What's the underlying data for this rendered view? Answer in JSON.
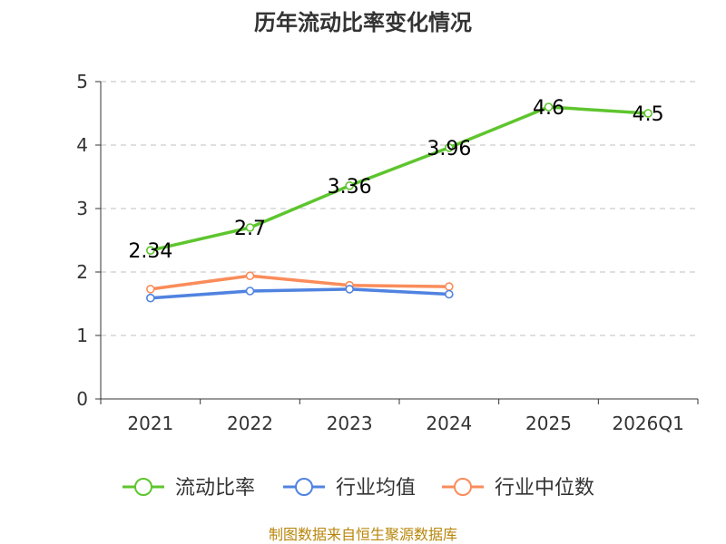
{
  "chart_data": {
    "type": "line",
    "title": "历年流动比率变化情况",
    "categories": [
      "2021",
      "2022",
      "2023",
      "2024",
      "2025",
      "2026Q1"
    ],
    "ylim": [
      0,
      5
    ],
    "yticks": [
      0,
      1,
      2,
      3,
      4,
      5
    ],
    "grid": true,
    "legend_position": "bottom",
    "series": [
      {
        "name": "流动比率",
        "color": "#5ec52e",
        "values": [
          2.34,
          2.7,
          3.36,
          3.96,
          4.6,
          4.5
        ],
        "labels": [
          "2.34",
          "2.7",
          "3.36",
          "3.96",
          "4.6",
          "4.5"
        ]
      },
      {
        "name": "行业均值",
        "color": "#5083e0",
        "values": [
          1.59,
          1.7,
          1.73,
          1.65,
          null,
          null
        ]
      },
      {
        "name": "行业中位数",
        "color": "#fa8c5a",
        "values": [
          1.73,
          1.94,
          1.79,
          1.77,
          null,
          null
        ]
      }
    ]
  },
  "footer": {
    "source": "制图数据来自恒生聚源数据库"
  }
}
